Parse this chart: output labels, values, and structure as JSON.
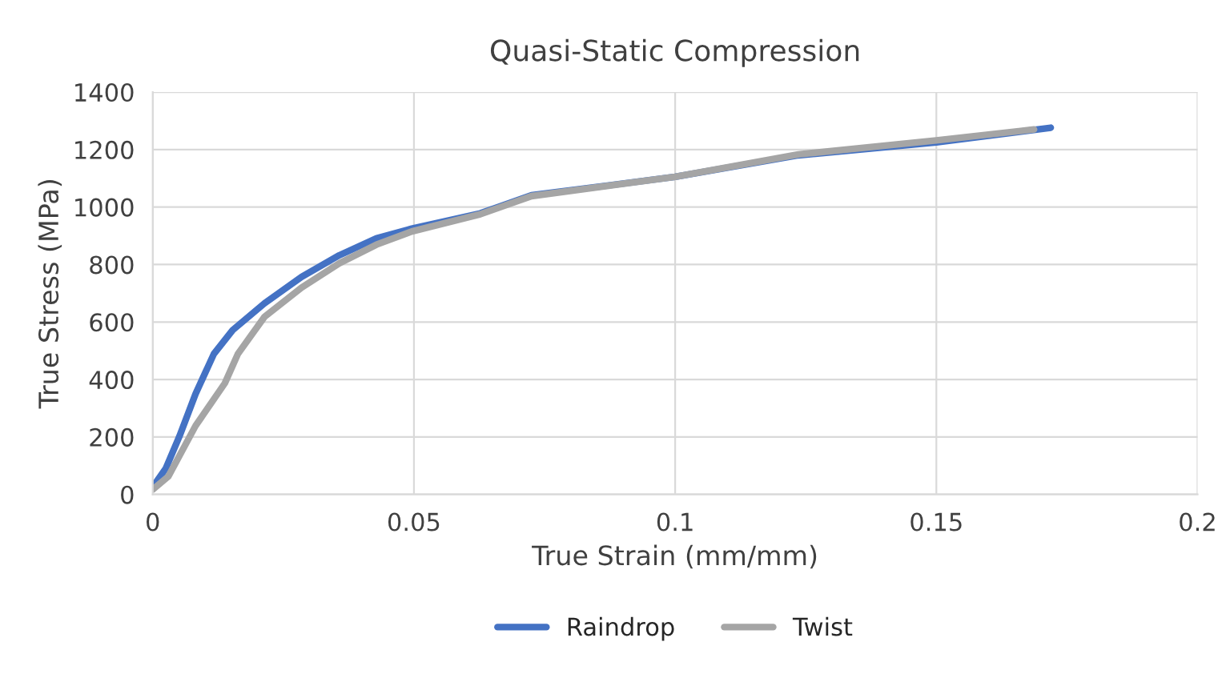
{
  "chart_data": {
    "type": "line",
    "title": "Quasi-Static Compression",
    "xlabel": "True Strain (mm/mm)",
    "ylabel": "True Stress (MPa)",
    "xlim": [
      0,
      0.2
    ],
    "xticks": [
      {
        "value": 0,
        "label": "0"
      },
      0.05,
      0.1,
      0.15,
      0.2
    ],
    "ylim": [
      0,
      1400
    ],
    "yticks": [
      0,
      200,
      400,
      600,
      800,
      1000,
      1200,
      1400
    ],
    "grid": true,
    "legend": "bottom",
    "marker": "none",
    "line_style": "solid",
    "series": [
      {
        "name": "Raindrop",
        "color": "#4472c4",
        "x": [
          0,
          0.0025,
          0.0051,
          0.0082,
          0.0117,
          0.0153,
          0.0214,
          0.0285,
          0.0357,
          0.0428,
          0.0496,
          0.0627,
          0.0725,
          0.1,
          0.1236,
          0.15,
          0.1719
        ],
        "values": [
          26,
          91,
          202,
          350,
          489,
          572,
          665,
          757,
          832,
          891,
          925,
          978,
          1041,
          1105,
          1180,
          1225,
          1276
        ]
      },
      {
        "name": "Twist",
        "color": "#a5a5a5",
        "x": [
          0,
          0.003,
          0.0082,
          0.0138,
          0.0163,
          0.0214,
          0.0285,
          0.0357,
          0.0428,
          0.0496,
          0.0627,
          0.0725,
          0.1,
          0.1236,
          0.15,
          0.1687
        ],
        "values": [
          17,
          63,
          239,
          387,
          489,
          618,
          720,
          804,
          869,
          915,
          975,
          1038,
          1105,
          1183,
          1232,
          1270
        ]
      }
    ]
  }
}
